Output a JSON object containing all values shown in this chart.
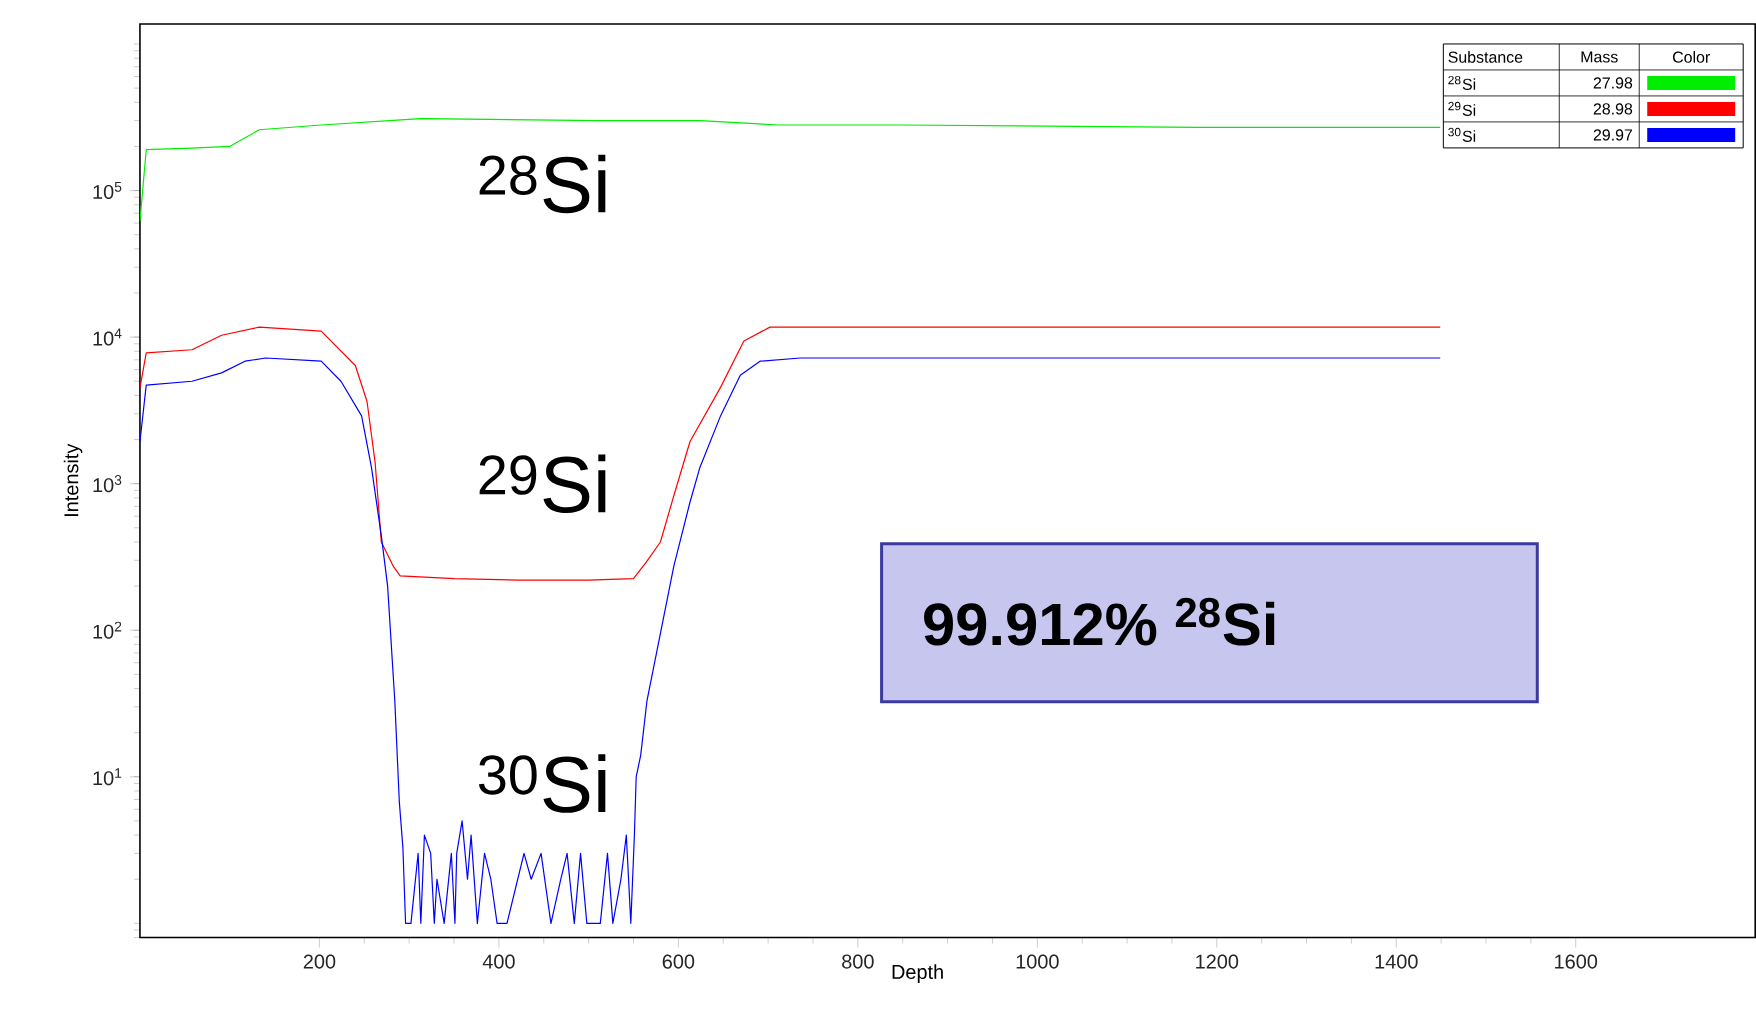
{
  "chart_data": {
    "type": "line",
    "xlabel": "Depth",
    "ylabel": "Intensity",
    "log": "y",
    "grid": false,
    "marker": "none",
    "line_style": "solid",
    "legend": "top right",
    "legend_title": "Substance",
    "xlim": [
      0,
      1800
    ],
    "xticks": [
      200,
      400,
      600,
      800,
      1000,
      1200,
      1400,
      1600
    ],
    "ylim": [
      0.8,
      1370000
    ],
    "yticks": [
      {
        "value": 10,
        "label": "10$^{1}$"
      },
      {
        "value": 100,
        "label": "10$^{2}$"
      },
      {
        "value": 1000,
        "label": "10$^{3}$"
      },
      {
        "value": 10000,
        "label": "10$^{4}$"
      },
      {
        "value": 100000,
        "label": "10$^{5}$"
      }
    ],
    "series": [
      {
        "name": "$^{28}$Si",
        "color": "#00ee00",
        "x": [
          0,
          7,
          58,
          100,
          133,
          202,
          313,
          513,
          624,
          713,
          847,
          1180,
          1449
        ],
        "values": [
          62000,
          190000,
          195000,
          200000,
          260000,
          280000,
          310000,
          300000,
          300000,
          280000,
          280000,
          270000,
          270000
        ]
      },
      {
        "name": "$^{29}$Si",
        "color": "#ff0000",
        "x": [
          0,
          7,
          58,
          91,
          133,
          202,
          240,
          253,
          262,
          269,
          282,
          290,
          350,
          420,
          500,
          550,
          564,
          580,
          595,
          613,
          647,
          673,
          702,
          800,
          1000,
          1200,
          1449
        ],
        "values": [
          4500,
          7800,
          8200,
          10300,
          11700,
          11000,
          6400,
          3650,
          1410,
          400,
          275,
          235,
          225,
          220,
          220,
          225,
          290,
          400,
          830,
          1940,
          4540,
          9400,
          11700,
          11700,
          11700,
          11700,
          11700
        ]
      },
      {
        "name": "$^{30}$Si",
        "color": "#0000ff",
        "x": [
          0,
          7,
          58,
          91,
          117,
          140,
          202,
          224,
          247,
          258,
          269,
          276,
          284,
          289,
          293,
          296,
          302,
          310,
          313,
          317,
          324,
          328,
          331,
          339,
          347,
          351,
          353,
          359,
          365,
          369,
          376,
          384,
          391,
          398,
          409,
          428,
          436,
          447,
          458,
          469,
          476,
          484,
          491,
          498,
          513,
          521,
          527,
          536,
          542,
          547,
          551,
          553,
          558,
          565,
          580,
          595,
          613,
          624,
          647,
          669,
          691,
          736,
          900,
          1100,
          1300,
          1449
        ],
        "values": [
          1940,
          4700,
          5000,
          5700,
          6850,
          7200,
          6850,
          5000,
          2900,
          1290,
          440,
          200,
          33,
          6.8,
          3.3,
          1,
          1,
          3,
          1,
          4,
          3,
          1,
          2,
          1,
          3,
          1,
          3,
          5,
          2,
          4,
          1,
          3,
          2,
          1,
          1,
          3,
          2,
          3,
          1,
          2,
          3,
          1,
          3,
          1,
          1,
          3,
          1,
          2,
          4,
          1,
          4,
          10,
          14,
          33,
          95,
          275,
          750,
          1290,
          2900,
          5500,
          6850,
          7200,
          7200,
          7200,
          7200,
          7200
        ]
      }
    ],
    "annotations": [
      "$^{28}$Si",
      "$^{29}$Si",
      "$^{30}$Si",
      "99.912% $^{28}$Si",
      "Mass",
      "Color",
      "27.98",
      "28.98",
      "29.97"
    ]
  }
}
